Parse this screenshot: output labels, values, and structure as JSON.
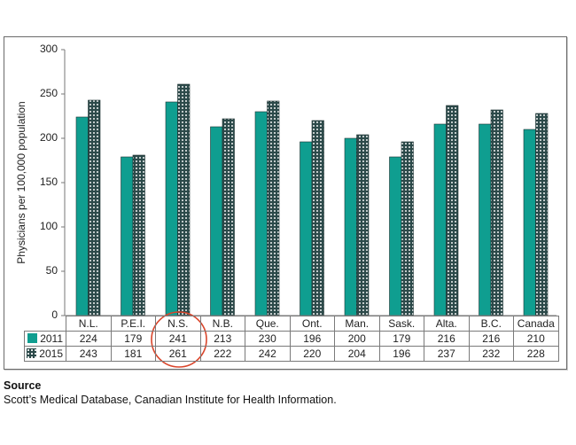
{
  "chart_data": {
    "type": "bar",
    "title": "",
    "xlabel": "",
    "ylabel": "Physicians per 100,000 population",
    "ylim": [
      0,
      300
    ],
    "yticks": [
      0,
      50,
      100,
      150,
      200,
      250,
      300
    ],
    "grid": false,
    "legend_position": "data-table",
    "categories": [
      "N.L.",
      "P.E.I.",
      "N.S.",
      "N.B.",
      "Que.",
      "Ont.",
      "Man.",
      "Sask.",
      "Alta.",
      "B.C.",
      "Canada"
    ],
    "series": [
      {
        "name": "2011",
        "color": "#0f9e90",
        "pattern": "solid",
        "values": [
          224,
          179,
          241,
          213,
          230,
          196,
          200,
          179,
          216,
          216,
          210
        ]
      },
      {
        "name": "2015",
        "color": "#2c4a4a",
        "pattern": "white-dots",
        "values": [
          243,
          181,
          261,
          222,
          242,
          220,
          204,
          196,
          237,
          232,
          228
        ]
      }
    ],
    "annotations": [
      {
        "type": "circle",
        "target": "N.S.",
        "color": "#d9452b"
      }
    ]
  },
  "ylabel": "Physicians per 100,000 population",
  "yticks": [
    "0",
    "50",
    "100",
    "150",
    "200",
    "250",
    "300"
  ],
  "table": {
    "categories": [
      "N.L.",
      "P.E.I.",
      "N.S.",
      "N.B.",
      "Que.",
      "Ont.",
      "Man.",
      "Sask.",
      "Alta.",
      "B.C.",
      "Canada"
    ],
    "rows": [
      {
        "label": "2011",
        "values": [
          "224",
          "179",
          "241",
          "213",
          "230",
          "196",
          "200",
          "179",
          "216",
          "216",
          "210"
        ]
      },
      {
        "label": "2015",
        "values": [
          "243",
          "181",
          "261",
          "222",
          "242",
          "220",
          "204",
          "196",
          "237",
          "232",
          "228"
        ]
      }
    ]
  },
  "source": {
    "heading": "Source",
    "text": "Scott’s Medical Database, Canadian Institute for Health Information."
  },
  "colors": {
    "series_2011": "#0f9e90",
    "series_2015": "#2c4a4a",
    "highlight_circle": "#d9452b"
  }
}
